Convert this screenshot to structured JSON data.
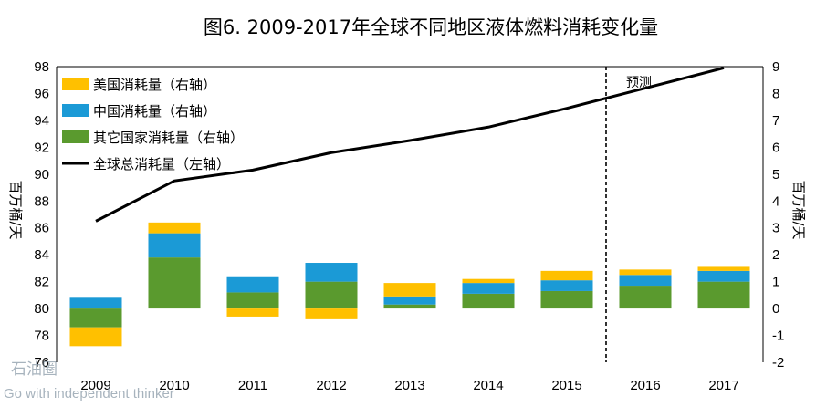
{
  "chart_data": {
    "type": "bar",
    "title": "图6. 2009-2017年全球不同地区液体燃料消耗变化量",
    "categories": [
      "2009",
      "2010",
      "2011",
      "2012",
      "2013",
      "2014",
      "2015",
      "2016",
      "2017"
    ],
    "left_axis": {
      "label": "百万桶/天",
      "ylim": [
        76,
        98
      ],
      "ticks": [
        76,
        78,
        80,
        82,
        84,
        86,
        88,
        90,
        92,
        94,
        96,
        98
      ]
    },
    "right_axis": {
      "label": "百万桶/天",
      "ylim": [
        -2,
        9
      ],
      "ticks": [
        -2,
        -1,
        0,
        1,
        2,
        3,
        4,
        5,
        6,
        7,
        8,
        9
      ]
    },
    "stacked": true,
    "series": [
      {
        "name": "美国消耗量（右轴）",
        "axis": "right",
        "color": "#FFC000",
        "values": [
          -0.7,
          0.4,
          -0.3,
          -0.4,
          0.5,
          0.15,
          0.35,
          0.2,
          0.15
        ]
      },
      {
        "name": "中国消耗量（右轴）",
        "axis": "right",
        "color": "#1B9AD6",
        "values": [
          0.4,
          0.9,
          0.6,
          0.7,
          0.3,
          0.4,
          0.4,
          0.4,
          0.4
        ]
      },
      {
        "name": "其它国家消耗量（右轴）",
        "axis": "right",
        "color": "#5A9A2E",
        "values": [
          -0.7,
          1.9,
          0.6,
          1.0,
          0.15,
          0.55,
          0.65,
          0.85,
          1.0
        ]
      },
      {
        "name": "全球总消耗量（左轴）",
        "axis": "left",
        "type": "line",
        "color": "#000000",
        "values": [
          86.5,
          89.5,
          90.3,
          91.6,
          92.5,
          93.5,
          94.9,
          96.4,
          97.9
        ]
      }
    ],
    "forecast_label": "预测",
    "forecast_start_category": "2016",
    "grid": false,
    "legend_position": "top-left"
  },
  "watermark": {
    "logo": "石油圈",
    "tagline": "Go with independent thinker"
  }
}
